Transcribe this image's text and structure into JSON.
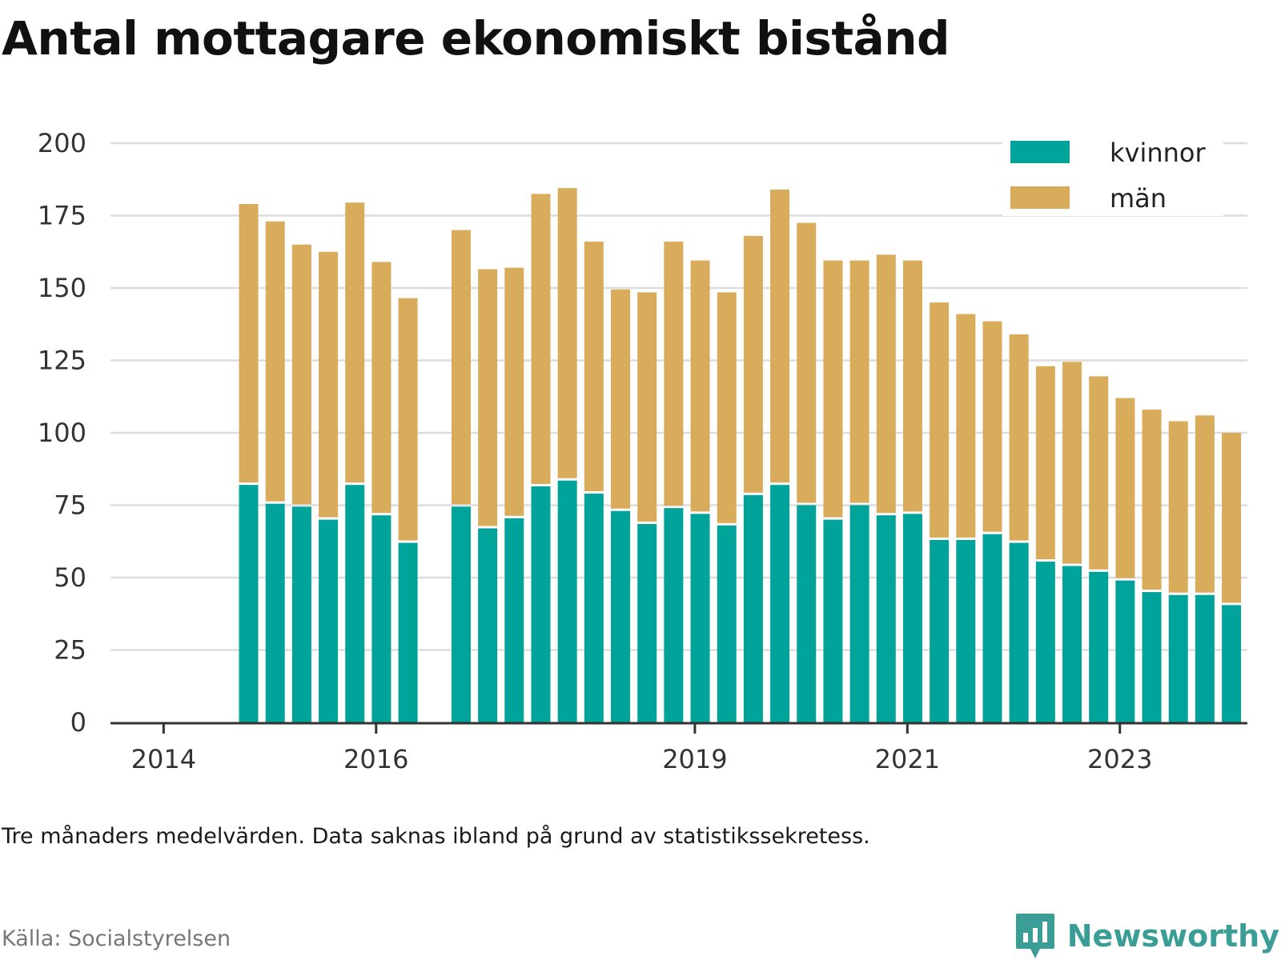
{
  "title": "Antal mottagare ekonomiskt bistånd",
  "note": "Tre månaders medelvärden. Data saknas ibland på grund av statistikssekretess.",
  "source": "Källa: Socialstyrelsen",
  "brand": {
    "name": "Newsworthy",
    "icon": "newsworthy-logo-icon"
  },
  "colors": {
    "kvinnor": "#00a39a",
    "man": "#d9ac5b",
    "grid": "#dddddd",
    "axis": "#333333",
    "brand": "#3a9e96"
  },
  "chart_data": {
    "type": "bar",
    "stacked": true,
    "y_ticks": [
      "0",
      "25",
      "50",
      "75",
      "100",
      "125",
      "150",
      "175",
      "200"
    ],
    "ylim": [
      0,
      200
    ],
    "x_ticks": [
      {
        "label": "2014",
        "x": -2.2
      },
      {
        "label": "2016",
        "x": 5.8
      },
      {
        "label": "2019",
        "x": 17.8
      },
      {
        "label": "2021",
        "x": 25.8
      },
      {
        "label": "2023",
        "x": 33.8
      }
    ],
    "xlim": [
      -4.2,
      38.6
    ],
    "categories": [
      "1",
      "2",
      "3",
      "4",
      "5",
      "6",
      "7",
      "8",
      "9",
      "10",
      "11",
      "12",
      "13",
      "14",
      "15",
      "16",
      "17",
      "18",
      "19",
      "20",
      "21",
      "22",
      "23",
      "24",
      "25",
      "26",
      "27",
      "28",
      "29",
      "30",
      "31",
      "32",
      "33",
      "34",
      "35",
      "36",
      "37",
      "38",
      "39",
      "40",
      "41",
      "42"
    ],
    "legend_position": "top-right",
    "series": [
      {
        "name": "kvinnor",
        "values": [
          82,
          75.5,
          74.5,
          70,
          82,
          71.5,
          62,
          null,
          74.5,
          67,
          70.5,
          81.5,
          83.5,
          79,
          73,
          68.5,
          74,
          72,
          68,
          78.5,
          82,
          75,
          70,
          75,
          71.5,
          72,
          63,
          63,
          65,
          62,
          55.5,
          54,
          52,
          49,
          45,
          44,
          44,
          40.5,
          null,
          null,
          null,
          null
        ]
      },
      {
        "name": "män",
        "values": [
          97,
          97.5,
          90.5,
          92.5,
          97.5,
          87.5,
          84.5,
          null,
          95.5,
          89.5,
          86.5,
          101,
          101,
          87,
          76.5,
          80,
          92,
          87.5,
          80.5,
          89.5,
          102,
          97.5,
          89.5,
          84.5,
          90,
          87.5,
          82,
          78,
          73.5,
          72,
          67.5,
          70.5,
          67.5,
          63,
          63,
          60,
          62,
          59.5,
          null,
          null,
          null,
          null
        ]
      }
    ]
  }
}
